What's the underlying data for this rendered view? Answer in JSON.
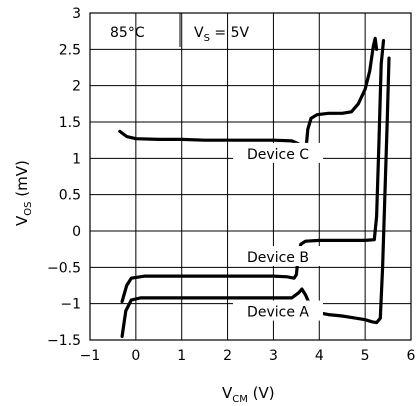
{
  "chart_data": {
    "type": "line",
    "xlabel": {
      "main": "V",
      "sub": "CM",
      "unit": " (V)"
    },
    "ylabel": {
      "main": "V",
      "sub": "OS",
      "unit": " (mV)"
    },
    "xlim": [
      -1,
      6
    ],
    "ylim": [
      -1.5,
      3
    ],
    "grid": true,
    "x_ticks": [
      -1,
      0,
      1,
      2,
      3,
      4,
      5,
      6
    ],
    "x_tick_labels": [
      "−1",
      "0",
      "1",
      "2",
      "3",
      "4",
      "5",
      "6"
    ],
    "y_ticks": [
      -1.5,
      -1,
      -0.5,
      0,
      0.5,
      1,
      1.5,
      2,
      2.5,
      3
    ],
    "y_tick_labels": [
      "−1.5",
      "−1",
      "−0.5",
      "0",
      "0.5",
      "1",
      "1.5",
      "2",
      "2.5",
      "3"
    ],
    "annotation": {
      "temp": "85°C",
      "vs_main": "V",
      "vs_sub": "S",
      "vs_value": " = 5V"
    },
    "series": [
      {
        "name": "Device C",
        "points": [
          [
            -0.35,
            1.37
          ],
          [
            -0.2,
            1.3
          ],
          [
            0.0,
            1.27
          ],
          [
            0.5,
            1.26
          ],
          [
            1.0,
            1.26
          ],
          [
            1.5,
            1.25
          ],
          [
            2.0,
            1.25
          ],
          [
            2.5,
            1.25
          ],
          [
            3.0,
            1.25
          ],
          [
            3.4,
            1.24
          ],
          [
            3.55,
            1.2
          ],
          [
            3.62,
            1.1
          ],
          [
            3.67,
            1.02
          ],
          [
            3.7,
            1.05
          ],
          [
            3.75,
            1.4
          ],
          [
            3.82,
            1.55
          ],
          [
            3.95,
            1.6
          ],
          [
            4.2,
            1.62
          ],
          [
            4.5,
            1.62
          ],
          [
            4.7,
            1.64
          ],
          [
            4.85,
            1.75
          ],
          [
            5.0,
            1.95
          ],
          [
            5.1,
            2.2
          ],
          [
            5.18,
            2.55
          ],
          [
            5.22,
            2.65
          ],
          [
            5.25,
            2.5
          ]
        ]
      },
      {
        "name": "Device B",
        "points": [
          [
            -0.3,
            -0.97
          ],
          [
            -0.2,
            -0.75
          ],
          [
            -0.1,
            -0.65
          ],
          [
            0.2,
            -0.62
          ],
          [
            1.0,
            -0.62
          ],
          [
            2.0,
            -0.62
          ],
          [
            3.0,
            -0.62
          ],
          [
            3.3,
            -0.63
          ],
          [
            3.45,
            -0.65
          ],
          [
            3.5,
            -0.6
          ],
          [
            3.55,
            -0.3
          ],
          [
            3.6,
            -0.18
          ],
          [
            3.7,
            -0.14
          ],
          [
            4.0,
            -0.13
          ],
          [
            4.5,
            -0.13
          ],
          [
            5.0,
            -0.13
          ],
          [
            5.2,
            -0.12
          ],
          [
            5.25,
            0.2
          ],
          [
            5.3,
            1.2
          ],
          [
            5.35,
            2.3
          ],
          [
            5.4,
            2.62
          ]
        ]
      },
      {
        "name": "Device A",
        "points": [
          [
            -0.3,
            -1.45
          ],
          [
            -0.22,
            -1.1
          ],
          [
            -0.1,
            -0.95
          ],
          [
            0.1,
            -0.92
          ],
          [
            1.0,
            -0.92
          ],
          [
            2.0,
            -0.92
          ],
          [
            3.0,
            -0.92
          ],
          [
            3.4,
            -0.92
          ],
          [
            3.55,
            -0.85
          ],
          [
            3.62,
            -0.8
          ],
          [
            3.7,
            -0.88
          ],
          [
            3.8,
            -1.02
          ],
          [
            3.95,
            -1.12
          ],
          [
            4.2,
            -1.15
          ],
          [
            4.5,
            -1.17
          ],
          [
            4.8,
            -1.2
          ],
          [
            5.0,
            -1.22
          ],
          [
            5.15,
            -1.25
          ],
          [
            5.25,
            -1.26
          ],
          [
            5.33,
            -1.2
          ],
          [
            5.38,
            -0.5
          ],
          [
            5.43,
            0.5
          ],
          [
            5.48,
            1.5
          ],
          [
            5.52,
            2.38
          ]
        ]
      }
    ],
    "series_label_positions": [
      [
        3.1,
        1.02
      ],
      [
        3.1,
        -0.4
      ],
      [
        3.1,
        -1.15
      ]
    ]
  }
}
